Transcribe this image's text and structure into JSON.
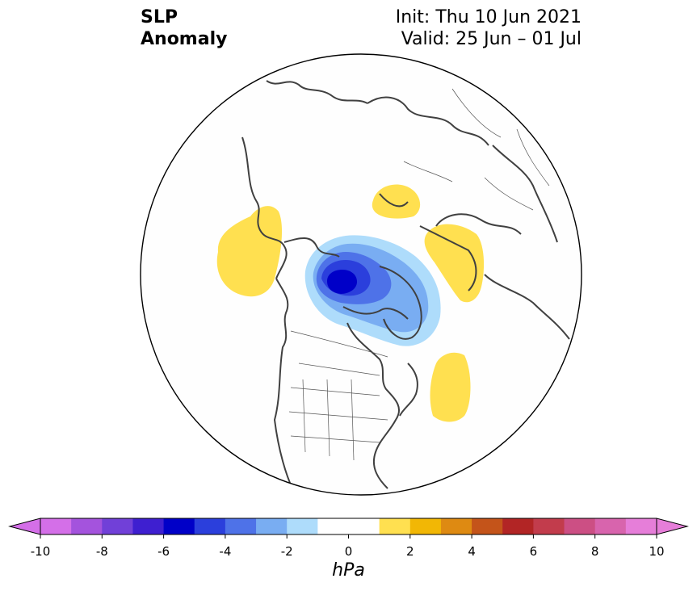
{
  "title": {
    "left_line1": "SLP",
    "left_line2": "Anomaly",
    "right_line1": "Init: Thu 10 Jun 2021",
    "right_line2": "Valid: 25 Jun – 01 Jul"
  },
  "colorbar": {
    "unit": "hPa",
    "ticks": [
      "-10",
      "-8",
      "-6",
      "-4",
      "-2",
      "0",
      "2",
      "4",
      "6",
      "8",
      "10"
    ],
    "bins": [
      {
        "from": -10,
        "to": -9,
        "color": "#d46fe8"
      },
      {
        "from": -9,
        "to": -8,
        "color": "#a453dd"
      },
      {
        "from": -8,
        "to": -7,
        "color": "#7140d8"
      },
      {
        "from": -7,
        "to": -6,
        "color": "#3e1fd0"
      },
      {
        "from": -6,
        "to": -5,
        "color": "#0000c8"
      },
      {
        "from": -5,
        "to": -4,
        "color": "#2b3fdc"
      },
      {
        "from": -4,
        "to": -3,
        "color": "#4e72e8"
      },
      {
        "from": -3,
        "to": -2,
        "color": "#79adf2"
      },
      {
        "from": -2,
        "to": -1,
        "color": "#aedcfb"
      },
      {
        "from": -1,
        "to": 1,
        "color": "#ffffff"
      },
      {
        "from": 1,
        "to": 2,
        "color": "#ffe050"
      },
      {
        "from": 2,
        "to": 3,
        "color": "#f2b705"
      },
      {
        "from": 3,
        "to": 4,
        "color": "#de8a12"
      },
      {
        "from": 4,
        "to": 5,
        "color": "#c4541a"
      },
      {
        "from": 5,
        "to": 6,
        "color": "#b22525"
      },
      {
        "from": 6,
        "to": 7,
        "color": "#c23c4c"
      },
      {
        "from": 7,
        "to": 8,
        "color": "#cc4f84"
      },
      {
        "from": 8,
        "to": 9,
        "color": "#d864ad"
      },
      {
        "from": 9,
        "to": 10,
        "color": "#e67ed9"
      }
    ],
    "extend_low_color": "#d46fe8",
    "extend_high_color": "#e67ed9"
  },
  "map": {
    "projection": "north-polar-stereographic",
    "anomalies": [
      {
        "region": "Alaska / NE Pacific",
        "sign": "positive",
        "level_hpa": 1
      },
      {
        "region": "Barents Sea",
        "sign": "positive",
        "level_hpa": 1
      },
      {
        "region": "Western Siberia",
        "sign": "positive",
        "level_hpa": 1
      },
      {
        "region": "NW Atlantic",
        "sign": "positive",
        "level_hpa": 1
      },
      {
        "region": "Canadian Arctic / Greenland",
        "sign": "negative",
        "min_level_hpa": -6
      }
    ]
  }
}
